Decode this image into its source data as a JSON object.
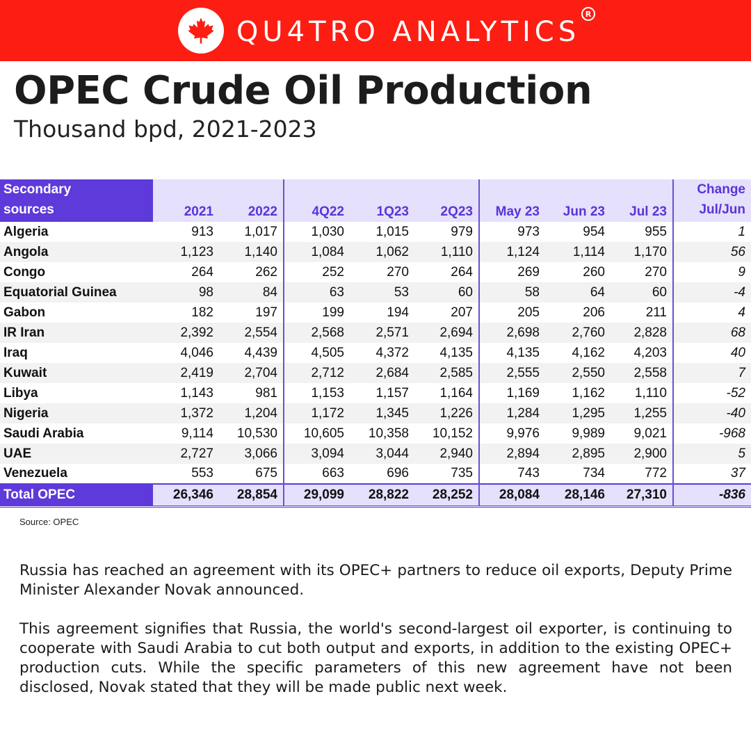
{
  "brand": {
    "name": "QU4TRO ANALYTICS",
    "registered": "R",
    "logo_icon": "maple-leaf-icon",
    "bar_color": "#fd1d12"
  },
  "header": {
    "title": "OPEC Crude Oil Production",
    "subtitle": "Thousand bpd, 2021-2023"
  },
  "table": {
    "corner_label_line1": "Secondary",
    "corner_label_line2": "sources",
    "columns": [
      "2021",
      "2022",
      "4Q22",
      "1Q23",
      "2Q23",
      "May 23",
      "Jun 23",
      "Jul 23"
    ],
    "change_label_line1": "Change",
    "change_label_line2": "Jul/Jun",
    "rows": [
      {
        "country": "Algeria",
        "values": [
          "913",
          "1,017",
          "1,030",
          "1,015",
          "979",
          "973",
          "954",
          "955"
        ],
        "change": "1"
      },
      {
        "country": "Angola",
        "values": [
          "1,123",
          "1,140",
          "1,084",
          "1,062",
          "1,110",
          "1,124",
          "1,114",
          "1,170"
        ],
        "change": "56"
      },
      {
        "country": "Congo",
        "values": [
          "264",
          "262",
          "252",
          "270",
          "264",
          "269",
          "260",
          "270"
        ],
        "change": "9"
      },
      {
        "country": "Equatorial Guinea",
        "values": [
          "98",
          "84",
          "63",
          "53",
          "60",
          "58",
          "64",
          "60"
        ],
        "change": "-4"
      },
      {
        "country": "Gabon",
        "values": [
          "182",
          "197",
          "199",
          "194",
          "207",
          "205",
          "206",
          "211"
        ],
        "change": "4"
      },
      {
        "country": "IR Iran",
        "values": [
          "2,392",
          "2,554",
          "2,568",
          "2,571",
          "2,694",
          "2,698",
          "2,760",
          "2,828"
        ],
        "change": "68"
      },
      {
        "country": "Iraq",
        "values": [
          "4,046",
          "4,439",
          "4,505",
          "4,372",
          "4,135",
          "4,135",
          "4,162",
          "4,203"
        ],
        "change": "40"
      },
      {
        "country": "Kuwait",
        "values": [
          "2,419",
          "2,704",
          "2,712",
          "2,684",
          "2,585",
          "2,555",
          "2,550",
          "2,558"
        ],
        "change": "7"
      },
      {
        "country": "Libya",
        "values": [
          "1,143",
          "981",
          "1,153",
          "1,157",
          "1,164",
          "1,169",
          "1,162",
          "1,110"
        ],
        "change": "-52"
      },
      {
        "country": "Nigeria",
        "values": [
          "1,372",
          "1,204",
          "1,172",
          "1,345",
          "1,226",
          "1,284",
          "1,295",
          "1,255"
        ],
        "change": "-40"
      },
      {
        "country": "Saudi Arabia",
        "values": [
          "9,114",
          "10,530",
          "10,605",
          "10,358",
          "10,152",
          "9,976",
          "9,989",
          "9,021"
        ],
        "change": "-968"
      },
      {
        "country": "UAE",
        "values": [
          "2,727",
          "3,066",
          "3,094",
          "3,044",
          "2,940",
          "2,894",
          "2,895",
          "2,900"
        ],
        "change": "5"
      },
      {
        "country": "Venezuela",
        "values": [
          "553",
          "675",
          "663",
          "696",
          "735",
          "743",
          "734",
          "772"
        ],
        "change": "37"
      }
    ],
    "total": {
      "country": "Total  OPEC",
      "values": [
        "26,346",
        "28,854",
        "29,099",
        "28,822",
        "28,252",
        "28,084",
        "28,146",
        "27,310"
      ],
      "change": "-836"
    },
    "accent_color": "#5d3ad9",
    "header_bg": "#e5e0fb"
  },
  "source": "Source: OPEC",
  "body": {
    "paragraph1": "Russia has reached an agreement with its OPEC+ partners to reduce oil exports, Deputy Prime Minister Alexander Novak announced.",
    "paragraph2": "This agreement signifies that Russia, the world's second-largest oil exporter, is continuing to cooperate with Saudi Arabia to cut both output and exports, in addition to the existing OPEC+ production cuts. While the specific parameters of this new agreement have not been disclosed, Novak stated that they will be made public next week."
  }
}
